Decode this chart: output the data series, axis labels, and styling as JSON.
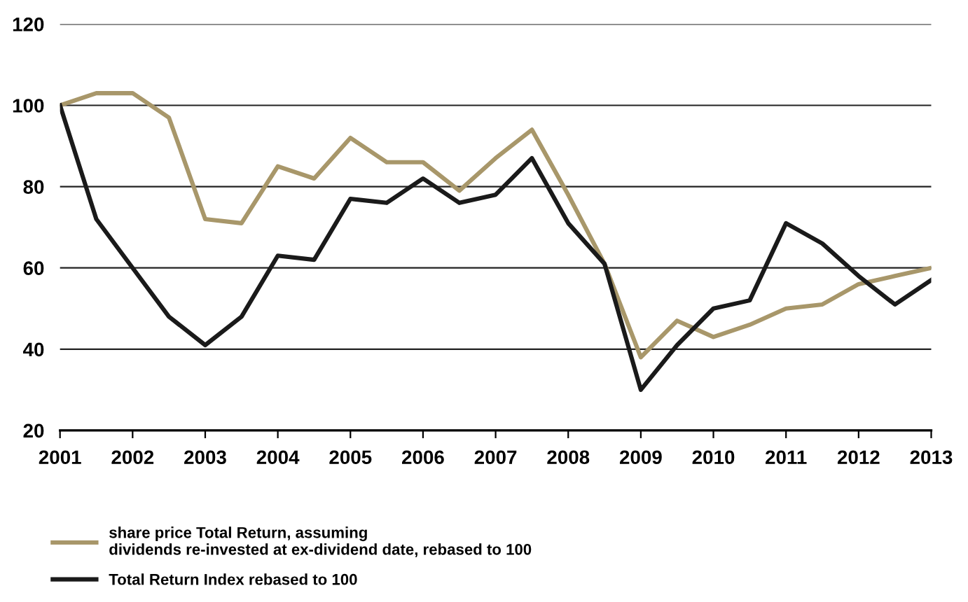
{
  "chart_data": {
    "type": "line",
    "x": [
      2001,
      2001.5,
      2002,
      2002.5,
      2003,
      2003.5,
      2004,
      2004.5,
      2005,
      2005.5,
      2006,
      2006.5,
      2007,
      2007.5,
      2008,
      2008.5,
      2009,
      2009.5,
      2010,
      2010.5,
      2011,
      2011.5,
      2012,
      2012.5,
      2013
    ],
    "series": [
      {
        "name": "share price Total Return, assuming\ndividends re-invested at ex-dividend date, rebased to 100",
        "color": "#a8976a",
        "values": [
          100,
          103,
          103,
          97,
          72,
          71,
          85,
          82,
          92,
          86,
          86,
          79,
          87,
          94,
          78,
          61,
          38,
          47,
          43,
          46,
          50,
          51,
          56,
          58,
          60
        ]
      },
      {
        "name": "Total Return Index rebased to 100",
        "color": "#1a1a1a",
        "values": [
          100,
          72,
          60,
          48,
          41,
          48,
          63,
          62,
          77,
          76,
          82,
          76,
          78,
          87,
          71,
          61,
          30,
          41,
          50,
          52,
          71,
          66,
          58,
          51,
          57
        ]
      }
    ],
    "xlim": [
      2001,
      2013
    ],
    "xticks": [
      2001,
      2002,
      2003,
      2004,
      2005,
      2006,
      2007,
      2008,
      2009,
      2010,
      2011,
      2012,
      2013
    ],
    "ylim": [
      20,
      120
    ],
    "yticks": [
      20,
      40,
      60,
      80,
      100,
      120
    ],
    "grid": "y",
    "legend": "bottom",
    "marker": "none",
    "line_style": "solid"
  }
}
